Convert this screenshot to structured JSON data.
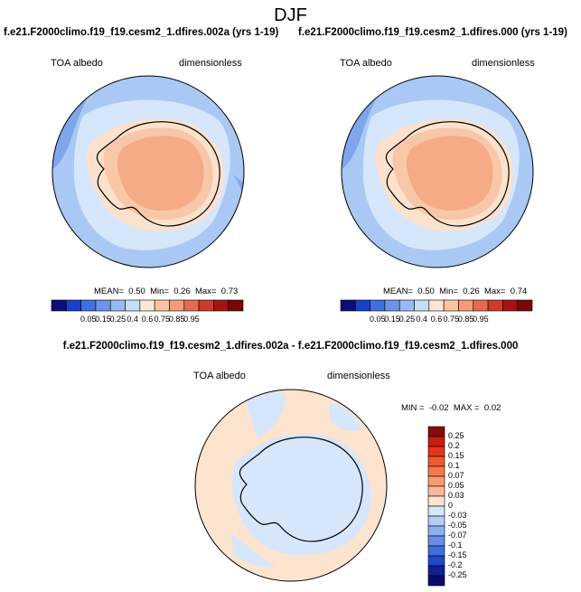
{
  "title": "DJF",
  "panels": [
    {
      "case": "f.e21.F2000climo.f19_f19.cesm2_1.dfires.002a (yrs 1-19)",
      "variable": "TOA albedo",
      "units": "dimensionless",
      "stats": {
        "mean_label": "MEAN=",
        "mean": "0.50",
        "min_label": "Min=",
        "min": "0.26",
        "max_label": "Max=",
        "max": "0.73"
      }
    },
    {
      "case": "f.e21.F2000climo.f19_f19.cesm2_1.dfires.000 (yrs 1-19)",
      "variable": "TOA albedo",
      "units": "dimensionless",
      "stats": {
        "mean_label": "MEAN=",
        "mean": "0.50",
        "min_label": "Min=",
        "min": "0.26",
        "max_label": "Max=",
        "max": "0.74"
      }
    }
  ],
  "colorbar": {
    "labels": [
      "0.05",
      "0.15",
      "0.25",
      "0.4",
      "0.6",
      "0.75",
      "0.85",
      "0.95"
    ],
    "colors": [
      "#0c0c7a",
      "#1a3fc8",
      "#3f6fe0",
      "#6a95ea",
      "#9ab9f2",
      "#c6dcf8",
      "#fde6d2",
      "#fcc3a3",
      "#f49b78",
      "#e66a4d",
      "#cf3a2b",
      "#a5140f",
      "#7a0606"
    ]
  },
  "difference": {
    "title": "f.e21.F2000climo.f19_f19.cesm2_1.dfires.002a - f.e21.F2000climo.f19_f19.cesm2_1.dfires.000",
    "variable": "TOA albedo",
    "units": "dimensionless",
    "stats": {
      "min_label": "MIN =",
      "min": "-0.02",
      "max_label": "MAX =",
      "max": "0.02"
    },
    "colorbar": {
      "labels": [
        "0.25",
        "0.2",
        "0.15",
        "0.1",
        "0.07",
        "0.05",
        "0.03",
        "0",
        "-0.03",
        "-0.05",
        "-0.07",
        "-0.1",
        "-0.15",
        "-0.2",
        "-0.25"
      ],
      "colors": [
        "#8b0a0a",
        "#c81e10",
        "#e2361c",
        "#f05a30",
        "#f47a4c",
        "#f79a70",
        "#f9b999",
        "#fde4cf",
        "#d6e6fb",
        "#b3cdf6",
        "#8cb0ef",
        "#6690e6",
        "#3f6fe0",
        "#2447c8",
        "#10209a",
        "#0a0a6e"
      ]
    }
  },
  "map_colors": {
    "ocean_deep": "#a9c9f4",
    "ocean_light": "#d6e6fb",
    "ocean_dark": "#7fa6ea",
    "land_interior": "#f4ab86",
    "land_mid": "#f8c7a8",
    "land_edge": "#fce1cd",
    "diff_positive": "#fde4cf",
    "diff_negative": "#d6e6fb"
  }
}
